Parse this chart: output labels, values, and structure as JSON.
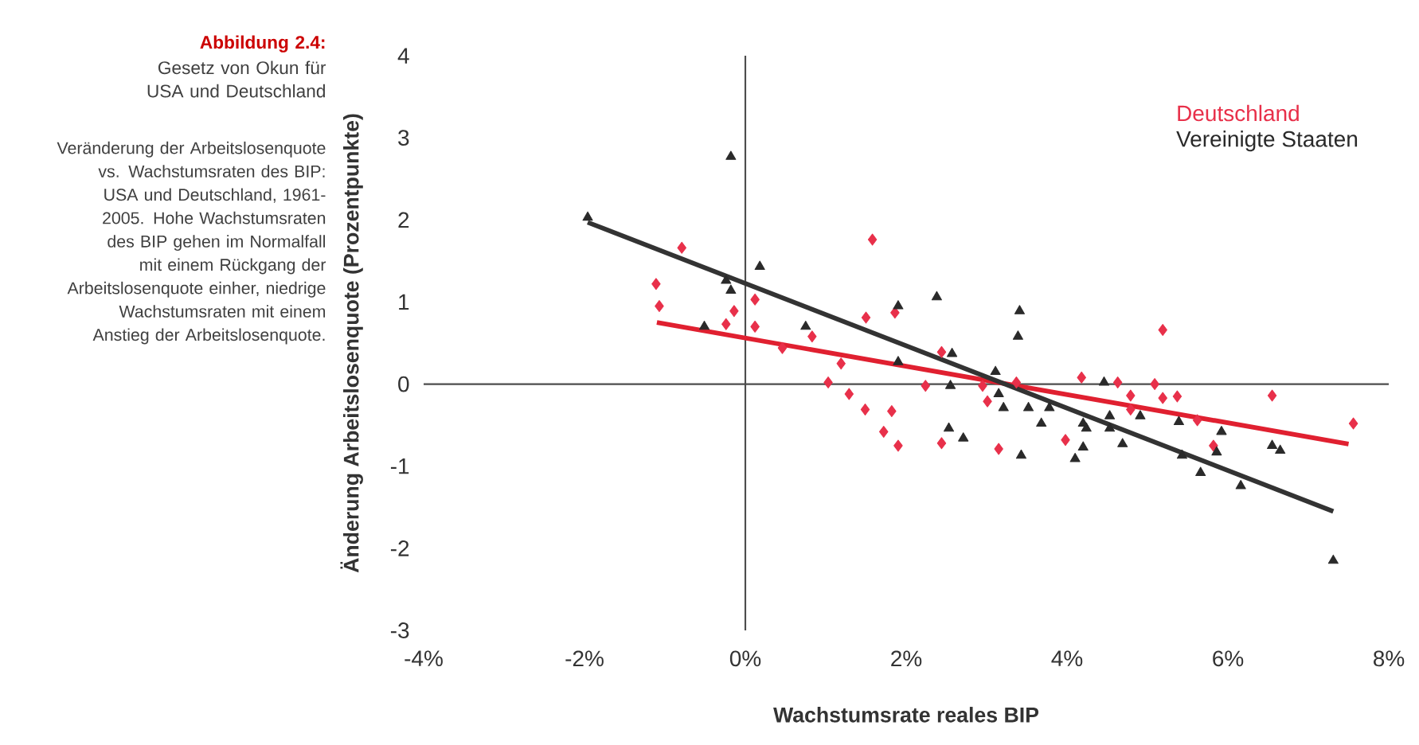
{
  "chart_data": {
    "type": "scatter",
    "title": "Abbildung 2.4:",
    "subtitle": "Gesetz von Okun für USA und Deutschland",
    "annotations": [
      "Veränderung der Arbeitslosenquote vs. Wachstumsraten des BIP: USA und Deutschland, 1961-2005. Hohe Wachstumsraten des BIP gehen im Normalfall mit einem Rückgang der Arbeitslosenquote einher, niedrige Wachstumsraten mit einem Anstieg der Arbeitslosenquote."
    ],
    "xlabel": "Wachstumsrate reales BIP",
    "ylabel": "Änderung Arbeitslosenquote (Prozentpunkte)",
    "xlim": [
      -4,
      8
    ],
    "ylim": [
      -3,
      4
    ],
    "xticks": [
      {
        "value": -4,
        "label": "-4%"
      },
      {
        "value": -2,
        "label": "-2%"
      },
      {
        "value": 0,
        "label": "0%"
      },
      {
        "value": 2,
        "label": "2%"
      },
      {
        "value": 4,
        "label": "4%"
      },
      {
        "value": 6,
        "label": "6%"
      },
      {
        "value": 8,
        "label": "8%"
      }
    ],
    "yticks": [
      -3,
      -2,
      -1,
      0,
      1,
      2,
      3,
      4
    ],
    "legend": "top right",
    "series": [
      {
        "name": "Deutschland",
        "marker": "diamond",
        "color": "#e8304a",
        "x": [
          -0.79,
          -1.11,
          -1.07,
          -0.14,
          -0.24,
          0.12,
          0.12,
          0.83,
          0.46,
          1.58,
          1.5,
          1.19,
          1.03,
          1.29,
          1.49,
          1.82,
          1.72,
          1.9,
          1.86,
          2.44,
          2.24,
          2.44,
          2.95,
          3.01,
          3.15,
          3.37,
          3.98,
          4.18,
          4.63,
          4.79,
          4.79,
          5.09,
          5.19,
          5.19,
          5.37,
          5.62,
          5.82,
          6.55,
          7.56
        ],
        "values": [
          1.66,
          1.22,
          0.95,
          0.89,
          0.73,
          1.03,
          0.7,
          0.58,
          0.44,
          1.76,
          0.81,
          0.25,
          0.02,
          -0.12,
          -0.31,
          -0.33,
          -0.58,
          -0.75,
          0.87,
          0.39,
          -0.02,
          -0.72,
          -0.02,
          -0.21,
          -0.79,
          0.02,
          -0.68,
          0.08,
          0.02,
          -0.14,
          -0.31,
          0.0,
          0.66,
          -0.17,
          -0.15,
          -0.44,
          -0.75,
          -0.14,
          -0.48
        ]
      },
      {
        "name": "Vereinigte Staaten",
        "marker": "triangle",
        "color": "#2a2a2a",
        "x": [
          -1.96,
          -0.18,
          0.18,
          -0.24,
          -0.18,
          -0.51,
          0.75,
          1.9,
          2.38,
          1.9,
          2.57,
          2.55,
          2.53,
          2.71,
          3.41,
          3.39,
          3.11,
          3.15,
          3.21,
          3.43,
          3.52,
          3.68,
          3.78,
          4.2,
          4.24,
          4.2,
          4.1,
          4.46,
          4.53,
          4.53,
          4.69,
          4.91,
          5.39,
          5.43,
          5.66,
          5.86,
          5.92,
          6.16,
          6.55,
          6.65,
          7.31
        ],
        "values": [
          2.03,
          2.77,
          1.43,
          1.26,
          1.14,
          0.7,
          0.7,
          0.95,
          1.06,
          0.27,
          0.37,
          -0.02,
          -0.54,
          -0.66,
          0.89,
          0.58,
          0.15,
          -0.12,
          -0.29,
          -0.87,
          -0.29,
          -0.48,
          -0.29,
          -0.48,
          -0.54,
          -0.77,
          -0.91,
          0.02,
          -0.39,
          -0.54,
          -0.73,
          -0.39,
          -0.46,
          -0.87,
          -1.08,
          -0.83,
          -0.58,
          -1.24,
          -0.75,
          -0.81,
          -2.15
        ]
      },
      {
        "type": "line",
        "color": "#e02030",
        "x": [
          -1.1,
          7.5
        ],
        "values": [
          0.75,
          -0.73
        ]
      },
      {
        "type": "line",
        "color": "#333333",
        "x": [
          -1.96,
          7.31
        ],
        "values": [
          1.97,
          -1.55
        ]
      }
    ]
  }
}
